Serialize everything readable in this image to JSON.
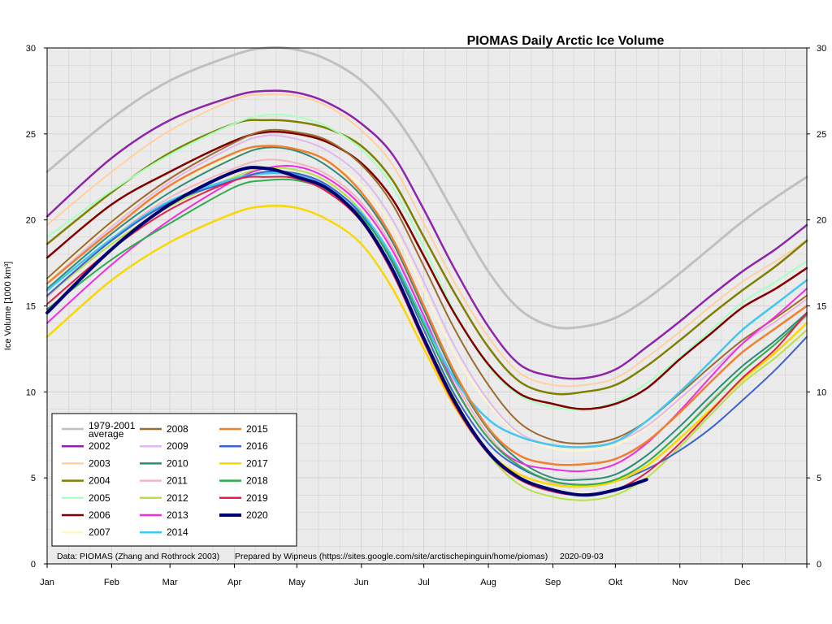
{
  "chart_data": {
    "type": "line",
    "title": "PIOMAS Daily Arctic Ice Volume",
    "ylabel": "Ice Volume [1000 km³]",
    "xlabel": "",
    "ylim": [
      0,
      30
    ],
    "xlim": [
      0,
      365
    ],
    "grid": true,
    "legend_position": "bottom-left",
    "yticks": [
      0,
      5,
      10,
      15,
      20,
      25,
      30
    ],
    "months": [
      {
        "label": "Jan",
        "day": 0
      },
      {
        "label": "Feb",
        "day": 31
      },
      {
        "label": "Mar",
        "day": 59
      },
      {
        "label": "Apr",
        "day": 90
      },
      {
        "label": "May",
        "day": 120
      },
      {
        "label": "Jun",
        "day": 151
      },
      {
        "label": "Jul",
        "day": 181
      },
      {
        "label": "Aug",
        "day": 212
      },
      {
        "label": "Sep",
        "day": 243
      },
      {
        "label": "Okt",
        "day": 273
      },
      {
        "label": "Nov",
        "day": 304
      },
      {
        "label": "Dec",
        "day": 334
      }
    ],
    "series": [
      {
        "name": "1979-2001 average",
        "color": "#c0c0c0",
        "width": 3,
        "x": [
          0,
          31,
          59,
          90,
          105,
          120,
          135,
          151,
          166,
          181,
          196,
          212,
          227,
          243,
          258,
          273,
          288,
          304,
          319,
          334,
          350,
          365
        ],
        "values": [
          22.8,
          25.9,
          28.1,
          29.6,
          30.0,
          29.9,
          29.3,
          28.1,
          26.2,
          23.5,
          20.3,
          17.0,
          14.8,
          13.8,
          13.8,
          14.3,
          15.4,
          16.9,
          18.4,
          19.9,
          21.3,
          22.5
        ]
      },
      {
        "name": "2002",
        "color": "#8e24aa",
        "width": 2.5,
        "x": [
          0,
          31,
          59,
          90,
          105,
          120,
          135,
          151,
          166,
          181,
          196,
          212,
          227,
          243,
          258,
          273,
          288,
          304,
          319,
          334,
          350,
          365
        ],
        "values": [
          20.2,
          23.6,
          25.8,
          27.2,
          27.5,
          27.4,
          26.8,
          25.6,
          23.8,
          20.6,
          17.1,
          13.8,
          11.6,
          10.9,
          10.8,
          11.3,
          12.6,
          14.1,
          15.6,
          17.0,
          18.3,
          19.7
        ]
      },
      {
        "name": "2003",
        "color": "#ffd0a0",
        "width": 2,
        "x": [
          0,
          31,
          59,
          90,
          105,
          120,
          135,
          151,
          166,
          181,
          196,
          212,
          227,
          243,
          258,
          273,
          288,
          304,
          319,
          334,
          350,
          365
        ],
        "values": [
          19.7,
          22.8,
          25.2,
          27.0,
          27.3,
          27.2,
          26.6,
          25.2,
          23.2,
          19.8,
          16.3,
          13.2,
          11.1,
          10.4,
          10.4,
          10.8,
          12.0,
          13.5,
          15.0,
          16.4,
          17.6,
          18.8
        ]
      },
      {
        "name": "2004",
        "color": "#808000",
        "width": 2.5,
        "x": [
          0,
          31,
          59,
          90,
          105,
          120,
          135,
          151,
          166,
          181,
          196,
          212,
          227,
          243,
          258,
          273,
          288,
          304,
          319,
          334,
          350,
          365
        ],
        "values": [
          18.6,
          21.6,
          23.9,
          25.6,
          25.8,
          25.7,
          25.3,
          24.3,
          22.3,
          19.0,
          15.7,
          12.6,
          10.6,
          9.9,
          10.0,
          10.4,
          11.5,
          13.0,
          14.5,
          15.9,
          17.3,
          18.8
        ]
      },
      {
        "name": "2005",
        "color": "#a8ffc0",
        "width": 2,
        "x": [
          0,
          31,
          59,
          90,
          105,
          120,
          135,
          151,
          166,
          181,
          196,
          212,
          227,
          243,
          258,
          273,
          288,
          304,
          319,
          334,
          350,
          365
        ],
        "values": [
          19.0,
          21.7,
          23.8,
          25.6,
          26.1,
          26.0,
          25.4,
          24.1,
          21.9,
          18.4,
          14.6,
          11.5,
          9.8,
          9.1,
          9.0,
          9.4,
          10.5,
          12.0,
          13.6,
          15.2,
          16.4,
          17.6
        ]
      },
      {
        "name": "2006",
        "color": "#800000",
        "width": 2.5,
        "x": [
          0,
          31,
          59,
          90,
          105,
          120,
          135,
          151,
          166,
          181,
          196,
          212,
          227,
          243,
          258,
          273,
          288,
          304,
          319,
          334,
          350,
          365
        ],
        "values": [
          17.8,
          20.9,
          22.8,
          24.6,
          25.1,
          25.0,
          24.5,
          23.3,
          21.2,
          17.9,
          14.5,
          11.6,
          9.9,
          9.3,
          9.0,
          9.3,
          10.2,
          11.9,
          13.4,
          14.9,
          16.0,
          17.2
        ]
      },
      {
        "name": "2007",
        "color": "#fff6c8",
        "width": 2,
        "x": [
          0,
          31,
          59,
          90,
          105,
          120,
          135,
          151,
          166,
          181,
          196,
          212,
          227,
          243,
          258,
          273,
          288,
          304,
          319,
          334,
          350,
          365
        ],
        "values": [
          16.5,
          19.8,
          22.0,
          23.7,
          24.2,
          24.1,
          23.4,
          22.0,
          19.6,
          15.9,
          12.2,
          9.3,
          7.5,
          6.7,
          6.6,
          6.9,
          7.9,
          9.5,
          11.2,
          12.8,
          14.2,
          15.5
        ]
      },
      {
        "name": "2008",
        "color": "#9c6b30",
        "width": 2,
        "x": [
          0,
          31,
          59,
          90,
          105,
          120,
          135,
          151,
          166,
          181,
          196,
          212,
          227,
          243,
          258,
          273,
          288,
          304,
          319,
          334,
          350,
          365
        ],
        "values": [
          16.6,
          19.9,
          22.4,
          24.5,
          25.2,
          25.1,
          24.6,
          23.2,
          20.9,
          17.3,
          13.6,
          10.4,
          8.2,
          7.2,
          7.0,
          7.3,
          8.3,
          9.9,
          11.5,
          13.0,
          14.3,
          15.6
        ]
      },
      {
        "name": "2009",
        "color": "#e0b8f0",
        "width": 2,
        "x": [
          0,
          31,
          59,
          90,
          105,
          120,
          135,
          151,
          166,
          181,
          196,
          212,
          227,
          243,
          258,
          273,
          288,
          304,
          319,
          334,
          350,
          365
        ],
        "values": [
          16.3,
          19.6,
          22.2,
          24.3,
          24.9,
          24.7,
          24.0,
          22.5,
          20.0,
          16.4,
          12.6,
          9.5,
          7.6,
          6.9,
          6.8,
          7.1,
          8.0,
          9.6,
          11.2,
          12.8,
          14.1,
          15.4
        ]
      },
      {
        "name": "2010",
        "color": "#2e8b7a",
        "width": 2,
        "x": [
          0,
          31,
          59,
          90,
          105,
          120,
          135,
          151,
          166,
          181,
          196,
          212,
          227,
          243,
          258,
          273,
          288,
          304,
          319,
          334,
          350,
          365
        ],
        "values": [
          16.0,
          19.2,
          21.6,
          23.6,
          24.2,
          24.0,
          23.1,
          21.4,
          18.7,
          14.8,
          10.9,
          7.8,
          6.0,
          5.0,
          4.9,
          5.2,
          6.3,
          8.0,
          9.8,
          11.5,
          13.0,
          14.6
        ]
      },
      {
        "name": "2011",
        "color": "#f4b4c0",
        "width": 2,
        "x": [
          0,
          31,
          59,
          90,
          105,
          120,
          135,
          151,
          166,
          181,
          196,
          212,
          227,
          243,
          258,
          273,
          288,
          304,
          319,
          334,
          350,
          365
        ],
        "values": [
          15.5,
          18.9,
          21.3,
          23.0,
          23.5,
          23.3,
          22.6,
          21.0,
          18.4,
          14.5,
          10.6,
          7.5,
          5.7,
          4.7,
          4.5,
          4.8,
          5.9,
          7.6,
          9.5,
          11.2,
          12.8,
          14.4
        ]
      },
      {
        "name": "2012",
        "color": "#b8e04a",
        "width": 2,
        "x": [
          0,
          31,
          59,
          90,
          105,
          120,
          135,
          151,
          166,
          181,
          196,
          212,
          227,
          243,
          258,
          273,
          288,
          304,
          319,
          334,
          350,
          365
        ],
        "values": [
          15.6,
          18.6,
          20.8,
          22.5,
          23.0,
          22.9,
          22.2,
          20.5,
          17.6,
          13.6,
          9.6,
          6.4,
          4.6,
          3.9,
          3.7,
          4.0,
          5.0,
          6.8,
          8.7,
          10.5,
          12.0,
          13.6
        ]
      },
      {
        "name": "2013",
        "color": "#ee2fe0",
        "width": 2,
        "x": [
          0,
          31,
          59,
          90,
          105,
          120,
          135,
          151,
          166,
          181,
          196,
          212,
          227,
          243,
          258,
          273,
          288,
          304,
          319,
          334,
          350,
          365
        ],
        "values": [
          14.0,
          17.4,
          20.0,
          22.3,
          23.0,
          23.1,
          22.4,
          20.8,
          18.2,
          14.4,
          10.3,
          7.3,
          5.9,
          5.5,
          5.4,
          5.8,
          7.0,
          8.9,
          10.9,
          12.8,
          14.4,
          16.0
        ]
      },
      {
        "name": "2014",
        "color": "#40c8f0",
        "width": 2.5,
        "x": [
          0,
          31,
          59,
          90,
          105,
          120,
          135,
          151,
          166,
          181,
          196,
          212,
          227,
          243,
          258,
          273,
          288,
          304,
          319,
          334,
          350,
          365
        ],
        "values": [
          15.9,
          18.9,
          21.1,
          22.4,
          22.7,
          22.6,
          21.9,
          20.4,
          17.8,
          14.1,
          10.7,
          8.4,
          7.4,
          6.9,
          6.8,
          7.1,
          8.3,
          10.0,
          11.8,
          13.6,
          15.1,
          16.5
        ]
      },
      {
        "name": "2015",
        "color": "#f08030",
        "width": 2.5,
        "x": [
          0,
          31,
          59,
          90,
          105,
          120,
          135,
          151,
          166,
          181,
          196,
          212,
          227,
          243,
          258,
          273,
          288,
          304,
          319,
          334,
          350,
          365
        ],
        "values": [
          16.3,
          19.4,
          22.0,
          23.9,
          24.3,
          24.1,
          23.4,
          21.6,
          18.9,
          15.0,
          11.1,
          7.9,
          6.3,
          5.8,
          5.8,
          6.1,
          7.1,
          8.8,
          10.6,
          12.3,
          13.7,
          15.0
        ]
      },
      {
        "name": "2016",
        "color": "#3c64cc",
        "width": 2,
        "x": [
          0,
          31,
          59,
          90,
          105,
          120,
          135,
          151,
          166,
          181,
          196,
          212,
          227,
          243,
          258,
          273,
          288,
          304,
          319,
          334,
          350,
          365
        ],
        "values": [
          15.6,
          18.8,
          21.0,
          22.3,
          22.8,
          22.7,
          22.0,
          20.3,
          17.5,
          13.6,
          9.8,
          7.0,
          5.6,
          4.8,
          4.6,
          4.8,
          5.5,
          6.6,
          7.9,
          9.5,
          11.3,
          13.2
        ]
      },
      {
        "name": "2017",
        "color": "#f8d800",
        "width": 2.5,
        "x": [
          0,
          31,
          59,
          90,
          105,
          120,
          135,
          151,
          166,
          181,
          196,
          212,
          227,
          243,
          258,
          273,
          288,
          304,
          319,
          334,
          350,
          365
        ],
        "values": [
          13.2,
          16.5,
          18.7,
          20.4,
          20.8,
          20.7,
          20.0,
          18.6,
          16.0,
          12.5,
          9.1,
          6.5,
          5.2,
          4.6,
          4.5,
          4.8,
          5.7,
          7.3,
          9.0,
          10.7,
          12.3,
          14.0
        ]
      },
      {
        "name": "2018",
        "color": "#2cae4c",
        "width": 2,
        "x": [
          0,
          31,
          59,
          90,
          105,
          120,
          135,
          151,
          166,
          181,
          196,
          212,
          227,
          243,
          258,
          273,
          288,
          304,
          319,
          334,
          350,
          365
        ],
        "values": [
          14.8,
          17.7,
          19.8,
          21.9,
          22.3,
          22.3,
          21.7,
          20.2,
          17.6,
          13.9,
          10.2,
          7.3,
          5.7,
          4.8,
          4.6,
          4.9,
          5.9,
          7.6,
          9.4,
          11.2,
          12.8,
          14.5
        ]
      },
      {
        "name": "2019",
        "color": "#e0204a",
        "width": 2,
        "x": [
          0,
          31,
          59,
          90,
          105,
          120,
          135,
          151,
          166,
          181,
          196,
          212,
          227,
          243,
          258,
          273,
          288,
          304,
          319,
          334,
          350,
          365
        ],
        "values": [
          15.1,
          18.3,
          20.6,
          22.3,
          22.5,
          22.4,
          21.6,
          19.9,
          16.9,
          12.9,
          9.2,
          6.4,
          4.9,
          4.2,
          4.0,
          4.3,
          5.3,
          7.0,
          8.9,
          10.8,
          12.5,
          14.6
        ]
      },
      {
        "name": "2020",
        "color": "#000070",
        "width": 4,
        "x": [
          0,
          31,
          59,
          90,
          105,
          120,
          135,
          151,
          166,
          181,
          196,
          212,
          227,
          243,
          258,
          273,
          288
        ],
        "values": [
          14.6,
          18.3,
          20.9,
          22.8,
          23.0,
          22.5,
          21.8,
          20.0,
          17.1,
          13.1,
          9.4,
          6.5,
          5.0,
          4.3,
          4.0,
          4.3,
          4.9
        ]
      }
    ]
  },
  "legend": {
    "items": [
      {
        "label": "1979-2001",
        "label2": "average",
        "color": "#c0c0c0"
      },
      {
        "label": "2002",
        "color": "#8e24aa"
      },
      {
        "label": "2003",
        "color": "#ffd0a0"
      },
      {
        "label": "2004",
        "color": "#808000"
      },
      {
        "label": "2005",
        "color": "#a8ffc0"
      },
      {
        "label": "2006",
        "color": "#800000"
      },
      {
        "label": "2007",
        "color": "#fff6c8"
      },
      {
        "label": "2008",
        "color": "#9c6b30"
      },
      {
        "label": "2009",
        "color": "#e0b8f0"
      },
      {
        "label": "2010",
        "color": "#2e8b7a"
      },
      {
        "label": "2011",
        "color": "#f4b4c0"
      },
      {
        "label": "2012",
        "color": "#b8e04a"
      },
      {
        "label": "2013",
        "color": "#ee2fe0"
      },
      {
        "label": "2014",
        "color": "#40c8f0"
      },
      {
        "label": "2015",
        "color": "#f08030"
      },
      {
        "label": "2016",
        "color": "#3c64cc"
      },
      {
        "label": "2017",
        "color": "#f8d800"
      },
      {
        "label": "2018",
        "color": "#2cae4c"
      },
      {
        "label": "2019",
        "color": "#e0204a"
      },
      {
        "label": "2020",
        "color": "#000070"
      }
    ]
  },
  "footer": {
    "data_source": "Data: PIOMAS (Zhang and Rothrock 2003)",
    "prepared_by": "Prepared by Wipneus (https://sites.google.com/site/arctischepinguin/home/piomas)",
    "date": "2020-09-03"
  },
  "colors": {
    "plot_background": "#ebebeb",
    "grid_line": "#d3d3d3",
    "axis_line": "#000000"
  }
}
